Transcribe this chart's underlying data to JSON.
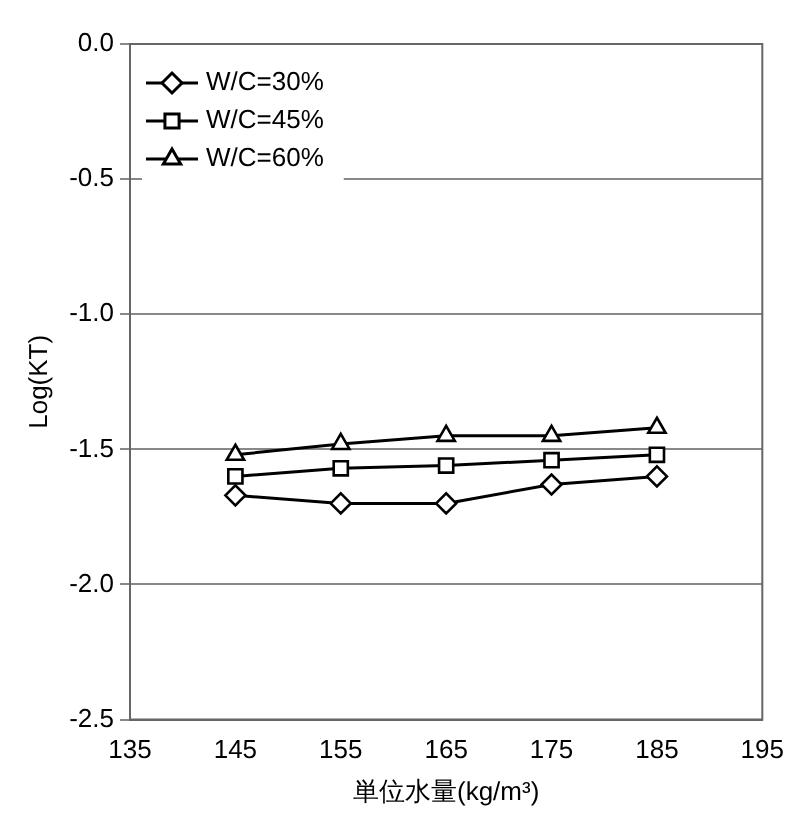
{
  "chart_data": {
    "type": "line",
    "xlabel": "単位水量(kg/m³)",
    "ylabel": "Log(KT)",
    "x": [
      145,
      155,
      165,
      175,
      185
    ],
    "series": [
      {
        "name": "W/C=30%",
        "color": "#000000",
        "marker": "diamond",
        "values": [
          -1.67,
          -1.7,
          -1.7,
          -1.63,
          -1.6
        ]
      },
      {
        "name": "W/C=45%",
        "color": "#000000",
        "marker": "square",
        "values": [
          -1.6,
          -1.57,
          -1.56,
          -1.54,
          -1.52
        ]
      },
      {
        "name": "W/C=60%",
        "color": "#000000",
        "marker": "triangle",
        "values": [
          -1.52,
          -1.48,
          -1.45,
          -1.45,
          -1.42
        ]
      }
    ],
    "xlim": [
      135,
      195
    ],
    "xticks": [
      135,
      145,
      155,
      165,
      175,
      185,
      195
    ],
    "ylim": [
      -2.5,
      0
    ],
    "yticks": [
      {
        "value": -2.5,
        "label": "-2.5"
      },
      {
        "value": -2,
        "label": "-2.0"
      },
      {
        "value": -1.5,
        "label": "-1.5"
      },
      {
        "value": -1,
        "label": "-1.0"
      },
      {
        "value": -0.5,
        "label": "-0.5"
      },
      {
        "value": 0,
        "label": "0.0"
      }
    ],
    "grid": "y",
    "legend": "top left",
    "line_style": "solid"
  }
}
